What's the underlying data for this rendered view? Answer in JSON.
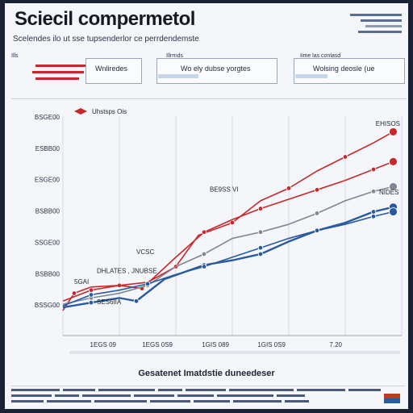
{
  "header": {
    "title": "Sciecil compermetol",
    "subtitle": "Scelendes ilo ut sse tupsenderlor ce perrdendemste"
  },
  "kpis": [
    {
      "label": "Ills",
      "value": "Wnliredes",
      "accent": "red"
    },
    {
      "label": "Illrrnds",
      "value": "Wo ely dubse yorgtes",
      "accent": "blue"
    },
    {
      "label": "Iime las conlasd",
      "value": "Wolsing deosle (ue",
      "accent": "blue"
    }
  ],
  "colors": {
    "red": "#c8282b",
    "blue": "#2a5a9e",
    "gray": "#7f8794",
    "grid": "#d6dbe3"
  },
  "chart_data": {
    "type": "line",
    "title": "",
    "xlabel": "Gesatenet Imatdstie duneedeser",
    "ylabel": "",
    "legend": "Uhstsps Ois",
    "legend_position": "top-left",
    "top_right_note": "EHISOS",
    "x_ticks": [
      "",
      "1EGS 09",
      "1EGS 0S9",
      "1GIS 089",
      "1GIS 0S9",
      "7.20"
    ],
    "y_ticks": [
      "BSGE00",
      "ESBB00",
      "ESGE00",
      "BSBB00",
      "SSGE00",
      "BSBB00",
      "BSSG00"
    ],
    "ylim": [
      0,
      7
    ],
    "annotations": [
      {
        "text": "BE9SS VI",
        "x": 2.6,
        "y": 4.6
      },
      {
        "text": "DHLATES , JNUBSE",
        "x": 0.6,
        "y": 2.0
      },
      {
        "text": "VCSC",
        "x": 1.3,
        "y": 2.6
      },
      {
        "text": "5GAI",
        "x": 0.2,
        "y": 1.65
      },
      {
        "text": "SES6IIA",
        "x": 0.6,
        "y": 1.0
      },
      {
        "text": "NIDES",
        "x": 5.6,
        "y": 4.5
      }
    ],
    "series": [
      {
        "color": "#c8282b",
        "x": [
          0,
          0.2,
          0.5,
          1,
          1.5,
          2,
          2.4,
          3,
          3.5,
          4,
          4.5,
          5,
          5.5,
          5.85
        ],
        "y": [
          0.8,
          1.35,
          1.55,
          1.6,
          1.7,
          2.2,
          3.2,
          3.6,
          4.3,
          4.7,
          5.25,
          5.7,
          6.15,
          6.5
        ]
      },
      {
        "color": "#c8282b",
        "x": [
          0,
          0.5,
          1,
          1.4,
          2,
          2.5,
          3,
          3.5,
          4,
          4.5,
          5,
          5.5,
          5.85
        ],
        "y": [
          1.1,
          1.45,
          1.6,
          1.5,
          2.5,
          3.3,
          3.7,
          4.05,
          4.35,
          4.65,
          4.95,
          5.3,
          5.55
        ]
      },
      {
        "color": "#7f8794",
        "x": [
          0,
          0.5,
          1,
          1.5,
          2,
          2.5,
          3,
          3.5,
          4,
          4.5,
          5,
          5.5,
          5.85
        ],
        "y": [
          1.0,
          1.2,
          1.35,
          1.6,
          2.2,
          2.6,
          3.1,
          3.3,
          3.55,
          3.9,
          4.3,
          4.6,
          4.75
        ]
      },
      {
        "color": "#2a5a9e",
        "x": [
          0,
          0.5,
          1,
          1.3,
          1.8,
          2.5,
          3,
          3.5,
          4,
          4.5,
          5,
          5.5,
          5.85
        ],
        "y": [
          0.9,
          1.05,
          1.2,
          1.1,
          1.8,
          2.25,
          2.4,
          2.6,
          3.0,
          3.35,
          3.6,
          3.95,
          4.1
        ]
      },
      {
        "color": "#2a5a9e",
        "x": [
          0,
          0.5,
          1,
          1.5,
          2,
          2.5,
          3,
          3.5,
          4,
          4.5,
          5,
          5.5,
          5.85
        ],
        "y": [
          0.95,
          1.3,
          1.45,
          1.65,
          1.95,
          2.2,
          2.5,
          2.8,
          3.1,
          3.35,
          3.55,
          3.8,
          3.95
        ]
      }
    ]
  },
  "footer": {
    "lines": 3
  }
}
